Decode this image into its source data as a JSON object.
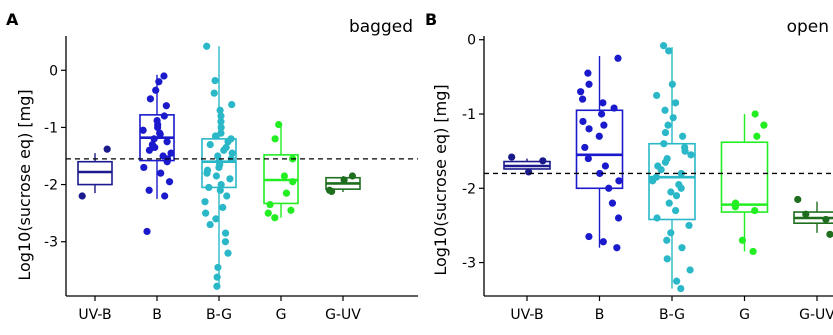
{
  "figure": {
    "ylabel": "Log10(sucrose eq) [mg]"
  },
  "chart_data": [
    {
      "type": "box",
      "panel_letter": "A",
      "title": "bagged",
      "ylabel": "Log10(sucrose eq) [mg]",
      "ylim": [
        -3.95,
        0.6
      ],
      "yticks": [
        0,
        -1,
        -2,
        -3
      ],
      "categories": [
        "UV-B",
        "B",
        "B-G",
        "G",
        "G-UV"
      ],
      "reference_line": -1.55,
      "groups": [
        {
          "name": "UV-B",
          "color": "#1a1a8c",
          "q1": -2.0,
          "median": -1.78,
          "q3": -1.6,
          "whisker_low": -2.15,
          "whisker_high": -1.45,
          "points": [
            -1.38,
            -2.2
          ]
        },
        {
          "name": "B",
          "color": "#1a1acc",
          "q1": -1.58,
          "median": -1.18,
          "q3": -0.78,
          "whisker_low": -2.25,
          "whisker_high": -0.08,
          "points": [
            -0.1,
            -0.2,
            -0.35,
            -0.5,
            -0.62,
            -0.8,
            -0.88,
            -0.95,
            -1.0,
            -1.05,
            -1.1,
            -1.12,
            -1.2,
            -1.25,
            -1.3,
            -1.35,
            -1.4,
            -1.45,
            -1.5,
            -1.55,
            -1.6,
            -1.7,
            -1.8,
            -1.95,
            -2.1,
            -2.2,
            -2.82
          ]
        },
        {
          "name": "B-G",
          "color": "#2ab8c8",
          "q1": -2.05,
          "median": -1.6,
          "q3": -1.2,
          "whisker_low": -3.75,
          "whisker_high": 0.42,
          "points": [
            0.42,
            -0.18,
            -0.4,
            -0.6,
            -0.7,
            -0.8,
            -0.9,
            -1.0,
            -1.1,
            -1.15,
            -1.2,
            -1.25,
            -1.3,
            -1.35,
            -1.4,
            -1.45,
            -1.5,
            -1.55,
            -1.6,
            -1.65,
            -1.7,
            -1.75,
            -1.8,
            -1.85,
            -1.9,
            -2.0,
            -2.05,
            -2.1,
            -2.2,
            -2.3,
            -2.4,
            -2.5,
            -2.6,
            -2.7,
            -2.85,
            -3.0,
            -3.2,
            -3.45,
            -3.62,
            -3.78
          ]
        },
        {
          "name": "G",
          "color": "#22ee22",
          "q1": -2.33,
          "median": -1.92,
          "q3": -1.48,
          "whisker_low": -2.58,
          "whisker_high": -0.95,
          "points": [
            -0.95,
            -1.2,
            -1.55,
            -1.85,
            -1.95,
            -2.15,
            -2.35,
            -2.45,
            -2.5,
            -2.58
          ]
        },
        {
          "name": "G-UV",
          "color": "#1e6e1e",
          "q1": -2.08,
          "median": -1.98,
          "q3": -1.88,
          "whisker_low": -2.13,
          "whisker_high": -1.85,
          "points": [
            -1.85,
            -1.92,
            -2.1,
            -2.12
          ]
        }
      ]
    },
    {
      "type": "box",
      "panel_letter": "B",
      "title": "open",
      "ylabel": "Log10(sucrose eq) [mg]",
      "ylim": [
        -3.45,
        0.05
      ],
      "yticks": [
        0,
        -1,
        -2,
        -3
      ],
      "categories": [
        "UV-B",
        "B",
        "B-G",
        "G",
        "G-UV"
      ],
      "reference_line": -1.8,
      "groups": [
        {
          "name": "UV-B",
          "color": "#1a1a8c",
          "q1": -1.74,
          "median": -1.7,
          "q3": -1.64,
          "whisker_low": -1.78,
          "whisker_high": -1.6,
          "points": [
            -1.58,
            -1.63,
            -1.78
          ]
        },
        {
          "name": "B",
          "color": "#1a1acc",
          "q1": -2.0,
          "median": -1.55,
          "q3": -0.95,
          "whisker_low": -2.8,
          "whisker_high": -0.22,
          "points": [
            -0.25,
            -0.45,
            -0.6,
            -0.7,
            -0.8,
            -0.85,
            -0.92,
            -1.0,
            -1.1,
            -1.15,
            -1.2,
            -1.3,
            -1.45,
            -1.6,
            -1.7,
            -1.8,
            -1.9,
            -2.0,
            -2.2,
            -2.4,
            -2.65,
            -2.72,
            -2.8
          ]
        },
        {
          "name": "B-G",
          "color": "#2ab8c8",
          "q1": -2.42,
          "median": -1.85,
          "q3": -1.4,
          "whisker_low": -3.35,
          "whisker_high": -0.1,
          "points": [
            -0.08,
            -0.15,
            -0.6,
            -0.75,
            -0.85,
            -0.95,
            -1.05,
            -1.15,
            -1.25,
            -1.3,
            -1.4,
            -1.45,
            -1.5,
            -1.55,
            -1.6,
            -1.65,
            -1.7,
            -1.75,
            -1.8,
            -1.85,
            -1.9,
            -1.95,
            -2.0,
            -2.05,
            -2.1,
            -2.2,
            -2.3,
            -2.4,
            -2.5,
            -2.6,
            -2.7,
            -2.8,
            -2.95,
            -3.1,
            -3.25,
            -3.35
          ]
        },
        {
          "name": "G",
          "color": "#22ee22",
          "q1": -2.32,
          "median": -2.22,
          "q3": -1.38,
          "whisker_low": -2.85,
          "whisker_high": -1.0,
          "points": [
            -1.0,
            -1.15,
            -1.3,
            -2.2,
            -2.25,
            -2.3,
            -2.7,
            -2.85
          ]
        },
        {
          "name": "G-UV",
          "color": "#1e6e1e",
          "q1": -2.47,
          "median": -2.4,
          "q3": -2.32,
          "whisker_low": -2.6,
          "whisker_high": -2.18,
          "points": [
            -2.15,
            -2.35,
            -2.42,
            -2.62
          ]
        }
      ]
    }
  ]
}
